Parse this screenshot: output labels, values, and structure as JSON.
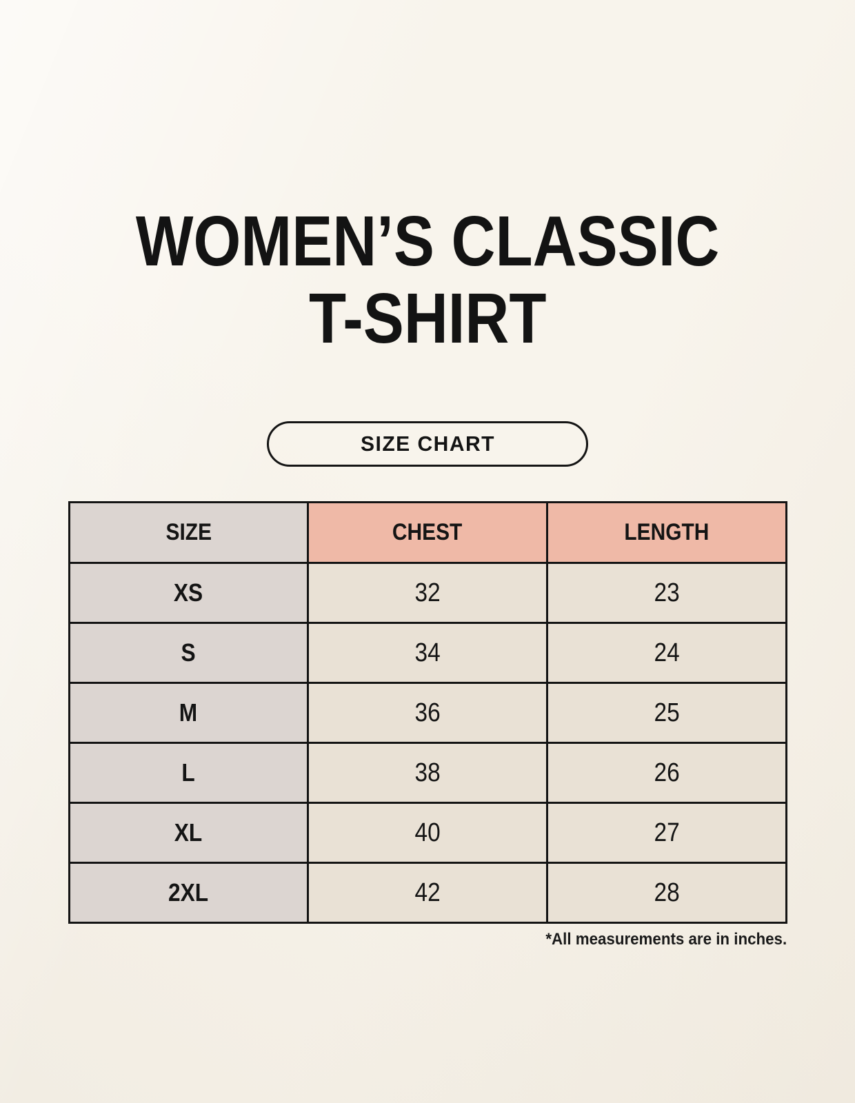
{
  "title": {
    "line1": "WOMEN’S CLASSIC",
    "line2": "T-SHIRT"
  },
  "size_chart_button": {
    "label": "SIZE CHART"
  },
  "table": {
    "headers": [
      "SIZE",
      "CHEST",
      "LENGTH"
    ],
    "rows": [
      {
        "size": "XS",
        "chest": "32",
        "length": "23"
      },
      {
        "size": "S",
        "chest": "34",
        "length": "24"
      },
      {
        "size": "M",
        "chest": "36",
        "length": "25"
      },
      {
        "size": "L",
        "chest": "38",
        "length": "26"
      },
      {
        "size": "XL",
        "chest": "40",
        "length": "27"
      },
      {
        "size": "2XL",
        "chest": "42",
        "length": "28"
      }
    ]
  },
  "footnote": "*All measurements are in inches.",
  "colors": {
    "background": "#f8f4ec",
    "size_column_bg": "#dcd5d1",
    "measure_header_bg": "#efb9a7",
    "data_cell_bg": "#e9e1d5",
    "border": "#141414",
    "text": "#141414"
  },
  "chart_data": {
    "type": "table",
    "title": "WOMEN’S CLASSIC T-SHIRT — SIZE CHART",
    "columns": [
      "SIZE",
      "CHEST",
      "LENGTH"
    ],
    "rows": [
      [
        "XS",
        32,
        23
      ],
      [
        "S",
        34,
        24
      ],
      [
        "M",
        36,
        25
      ],
      [
        "L",
        38,
        26
      ],
      [
        "XL",
        40,
        27
      ],
      [
        "2XL",
        42,
        28
      ]
    ],
    "units": "inches"
  }
}
